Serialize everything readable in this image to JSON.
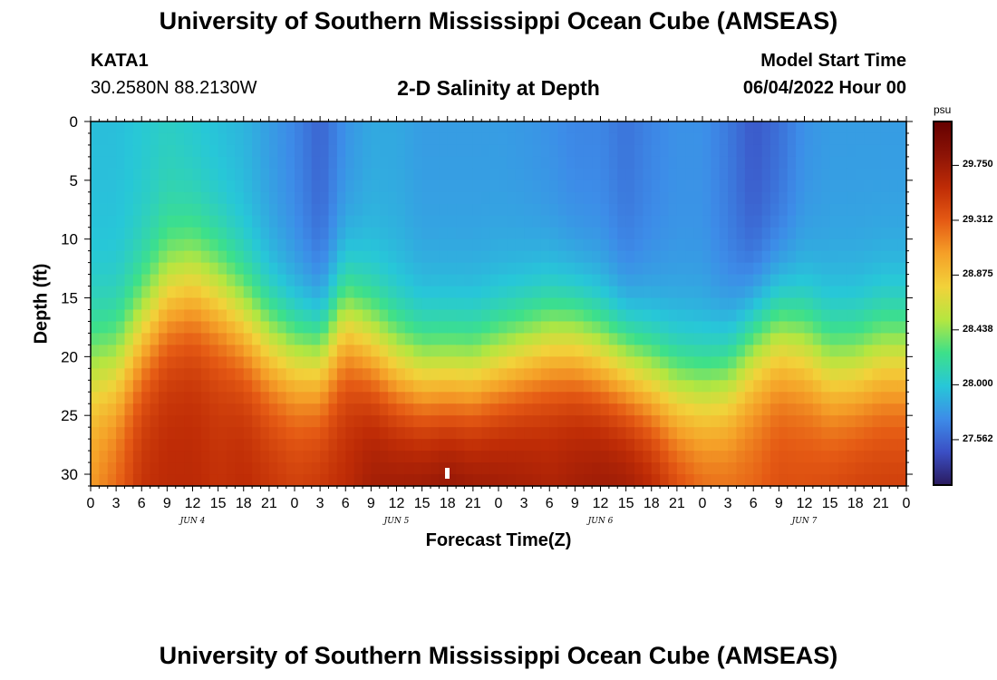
{
  "header": {
    "title": "University of Southern Mississippi Ocean Cube (AMSEAS)",
    "station": "KATA1",
    "location": "30.2580N  88.2130W",
    "plot_title": "2-D Salinity at Depth",
    "start_label": "Model Start Time",
    "start_value": "06/04/2022 Hour 00"
  },
  "footer": {
    "title": "University of Southern Mississippi Ocean Cube (AMSEAS)"
  },
  "colorbar": {
    "unit": "psu",
    "ticks": [
      "29.750",
      "29.312",
      "28.875",
      "28.438",
      "28.000",
      "27.562"
    ],
    "tick_values": [
      29.75,
      29.312,
      28.875,
      28.438,
      28.0,
      27.562
    ],
    "range": [
      27.2,
      30.1
    ],
    "colors": [
      "#2a1a5e",
      "#3b4fc4",
      "#3d8ce8",
      "#27c7d8",
      "#3de08a",
      "#b5e640",
      "#f2d23a",
      "#f5a028",
      "#e55a14",
      "#bf2c06",
      "#8c1306",
      "#650000"
    ]
  },
  "chart_data": {
    "type": "heatmap",
    "xlabel": "Forecast Time(Z)",
    "ylabel": "Depth (ft)",
    "x_ticks": [
      "0",
      "3",
      "6",
      "9",
      "12",
      "15",
      "18",
      "21",
      "0",
      "3",
      "6",
      "9",
      "12",
      "15",
      "18",
      "21",
      "0",
      "3",
      "6",
      "9",
      "12",
      "15",
      "18",
      "21",
      "0",
      "3",
      "6",
      "9",
      "12",
      "15",
      "18",
      "21",
      "0"
    ],
    "x_range_hours": [
      0,
      96
    ],
    "day_labels": [
      {
        "label": "JUN 4",
        "hour": 12
      },
      {
        "label": "JUN 5",
        "hour": 36
      },
      {
        "label": "JUN 6",
        "hour": 60
      },
      {
        "label": "JUN 7",
        "hour": 84
      }
    ],
    "y_ticks": [
      "0",
      "5",
      "10",
      "15",
      "20",
      "25",
      "30"
    ],
    "y_tick_values": [
      0,
      5,
      10,
      15,
      20,
      25,
      30
    ],
    "y_range": [
      0,
      31
    ],
    "columns_hours": [
      0,
      3,
      6,
      9,
      12,
      15,
      18,
      21,
      24,
      27,
      30,
      33,
      36,
      39,
      42,
      45,
      48,
      51,
      54,
      57,
      60,
      63,
      66,
      69,
      72,
      75,
      78,
      81,
      84,
      87,
      90,
      93,
      96
    ],
    "interface_depth": [
      21,
      21,
      18,
      15,
      14,
      15,
      17,
      19,
      20,
      20,
      17,
      19,
      21,
      22,
      22,
      22,
      21,
      20,
      19,
      19,
      20,
      21,
      22,
      23,
      23,
      22,
      19,
      18,
      19,
      21,
      21,
      20,
      20
    ],
    "surface_salinity": [
      27.95,
      27.95,
      28.0,
      28.05,
      28.0,
      27.95,
      27.9,
      27.8,
      27.7,
      27.55,
      27.75,
      27.85,
      27.85,
      27.8,
      27.8,
      27.8,
      27.8,
      27.78,
      27.75,
      27.7,
      27.7,
      27.62,
      27.7,
      27.75,
      27.75,
      27.65,
      27.5,
      27.6,
      27.75,
      27.8,
      27.8,
      27.8,
      27.8
    ],
    "bottom_salinity": [
      29.1,
      29.3,
      29.55,
      29.6,
      29.6,
      29.55,
      29.6,
      29.55,
      29.5,
      29.55,
      29.6,
      29.75,
      29.8,
      29.85,
      29.9,
      29.85,
      29.8,
      29.75,
      29.7,
      29.75,
      29.8,
      29.8,
      29.7,
      29.5,
      29.35,
      29.3,
      29.3,
      29.4,
      29.4,
      29.45,
      29.5,
      29.5,
      29.5
    ]
  }
}
